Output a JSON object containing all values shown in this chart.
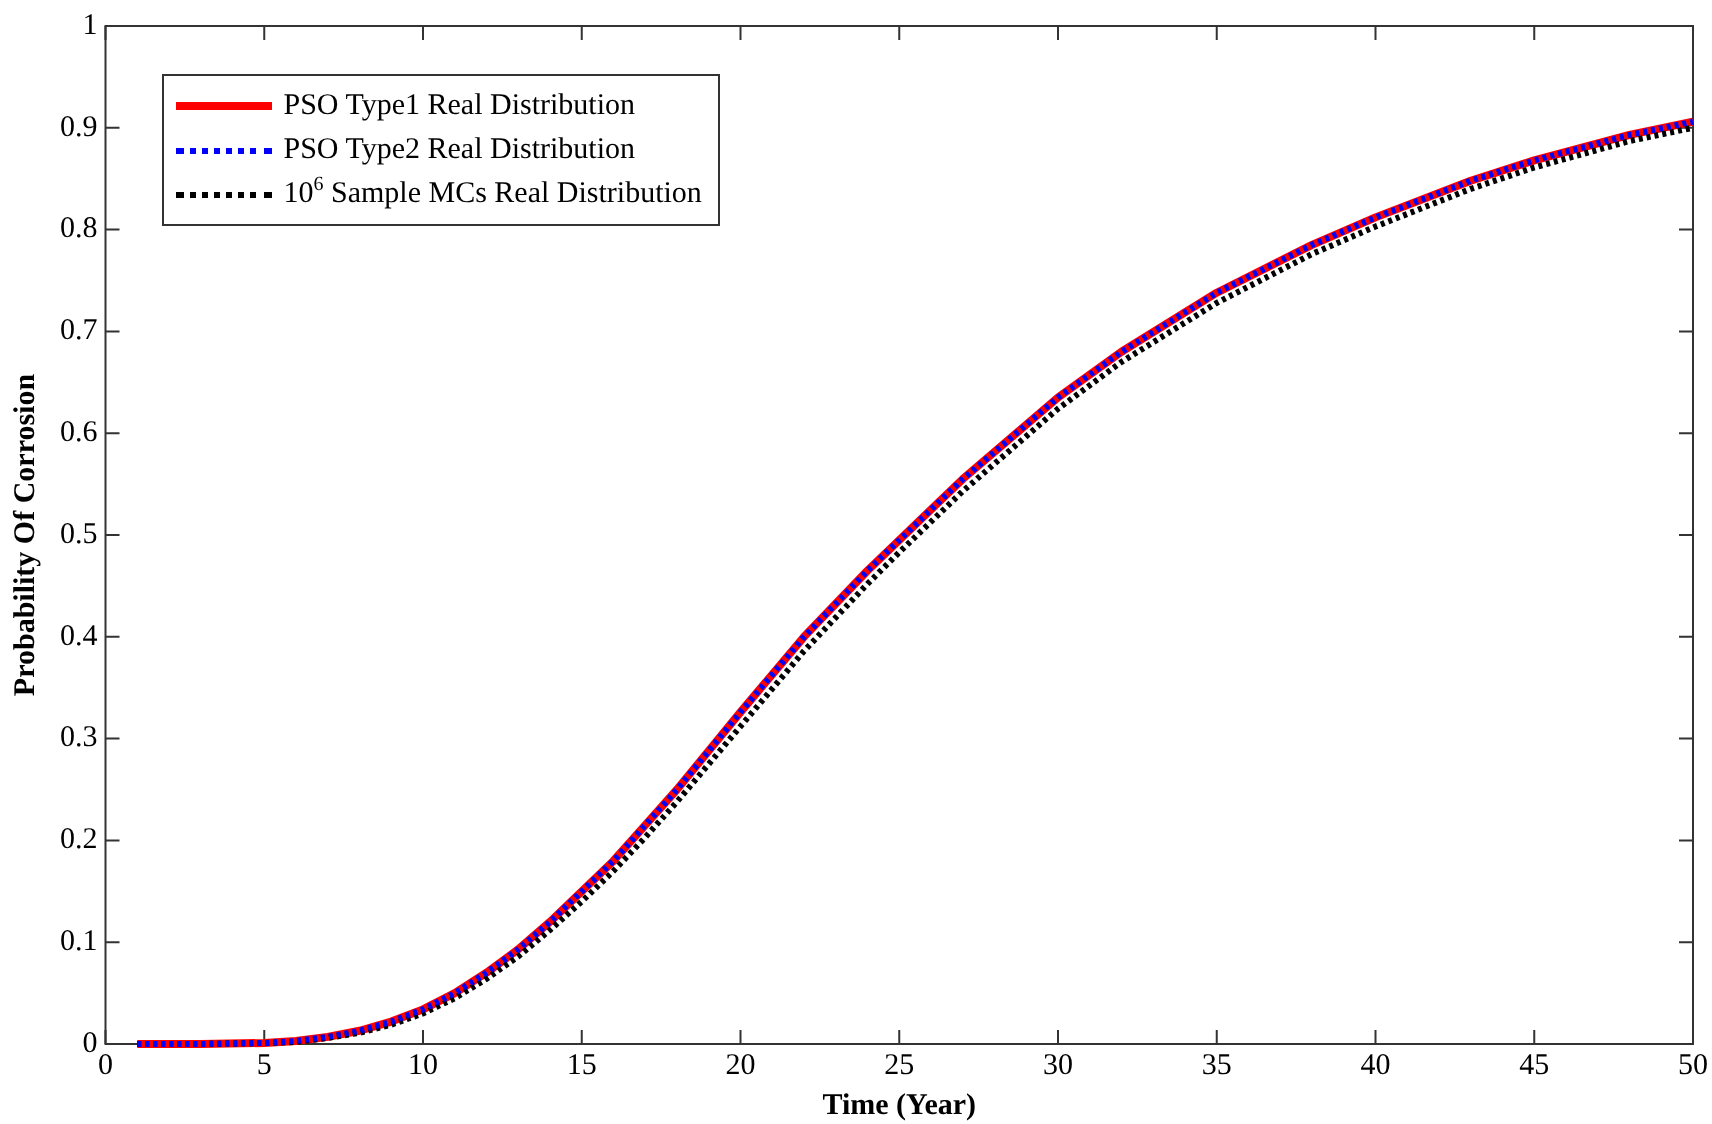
{
  "chart_data": {
    "type": "line",
    "xlabel": "Time (Year)",
    "ylabel": "Probability Of Corrosion",
    "xlim": [
      0,
      50
    ],
    "xticks": [
      0,
      5,
      10,
      15,
      20,
      25,
      30,
      35,
      40,
      45,
      50
    ],
    "ylim": [
      0,
      1
    ],
    "yticks": [
      0,
      0.1,
      0.2,
      0.3,
      0.4,
      0.5,
      0.6,
      0.7,
      0.8,
      0.9,
      1
    ],
    "grid": false,
    "legend": "top left",
    "marker": "none",
    "x": [
      1,
      3,
      5,
      6,
      7,
      8,
      9,
      10,
      11,
      12,
      13,
      14,
      15,
      16,
      17,
      18,
      19,
      20,
      22,
      24,
      25,
      27,
      30,
      32,
      35,
      38,
      40,
      43,
      45,
      48,
      50
    ],
    "series": [
      {
        "name": "PSO Type1 Real Distribution",
        "color": "#ff0000",
        "line_style": "solid",
        "values": [
          0,
          0,
          0.001,
          0.003,
          0.007,
          0.013,
          0.022,
          0.034,
          0.05,
          0.07,
          0.093,
          0.12,
          0.15,
          0.18,
          0.215,
          0.25,
          0.288,
          0.326,
          0.4,
          0.465,
          0.495,
          0.555,
          0.635,
          0.68,
          0.738,
          0.785,
          0.812,
          0.848,
          0.868,
          0.893,
          0.906
        ]
      },
      {
        "name": "PSO Type2 Real Distribution",
        "color": "#0000ff",
        "line_style": "dotted",
        "values": [
          0,
          0,
          0.001,
          0.003,
          0.007,
          0.013,
          0.022,
          0.034,
          0.05,
          0.07,
          0.093,
          0.12,
          0.15,
          0.18,
          0.215,
          0.25,
          0.288,
          0.326,
          0.4,
          0.465,
          0.495,
          0.555,
          0.635,
          0.68,
          0.738,
          0.785,
          0.812,
          0.848,
          0.868,
          0.893,
          0.906
        ]
      },
      {
        "name": "10$^{6}$ Sample MCs Real Distribution",
        "color": "#000000",
        "line_style": "dotted",
        "values": [
          0,
          0,
          0.001,
          0.002,
          0.006,
          0.011,
          0.019,
          0.03,
          0.045,
          0.064,
          0.086,
          0.112,
          0.14,
          0.17,
          0.203,
          0.238,
          0.275,
          0.312,
          0.386,
          0.452,
          0.483,
          0.543,
          0.624,
          0.67,
          0.728,
          0.776,
          0.803,
          0.84,
          0.861,
          0.887,
          0.9
        ]
      }
    ]
  }
}
